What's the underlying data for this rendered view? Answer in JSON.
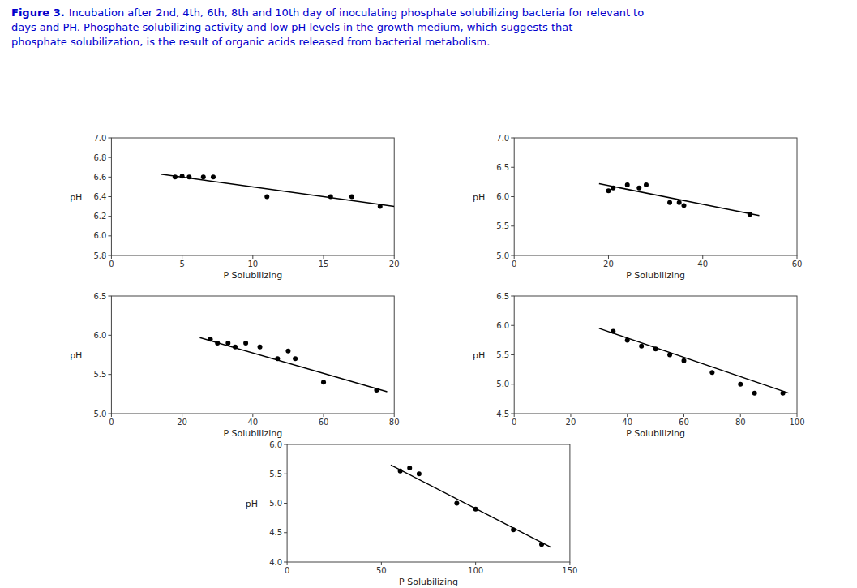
{
  "title": "Figure 3.",
  "subtitle": [
    "Incubation after 2nd, 4th, 6th, 8th and 10th day of inoculating phosphate solubilizing bacteria for relevant to",
    "days and PH. Phosphate solubilizing activity and low pH levels in the growth medium, which suggests that",
    "phosphate solubilization, is the result of organic acids released from bacterial metabolism."
  ],
  "color": "#0000cc",
  "chart_data": [
    {
      "type": "scatter",
      "x_label": "P Solubilizing",
      "y_label": "pH",
      "grid": false,
      "xlim": [
        0,
        20
      ],
      "ylim": [
        5.8,
        7.0
      ],
      "xticks": [
        0,
        5,
        10,
        15,
        20
      ],
      "yticks": [
        5.8,
        {
          "value": 6.0,
          "label": "6.0"
        },
        6.2,
        6.4,
        6.6,
        6.8,
        {
          "value": 7.0,
          "label": "7.0"
        }
      ],
      "series": [
        {
          "type": "scatter",
          "color": "#000000",
          "x": [
            4.5,
            5.0,
            5.5,
            6.5,
            7.2,
            11.0,
            15.5,
            17.0,
            19.0
          ],
          "values": [
            6.6,
            6.61,
            6.6,
            6.6,
            6.6,
            6.4,
            6.4,
            6.4,
            6.3
          ]
        },
        {
          "type": "line",
          "color": "#000000",
          "x": [
            3.5,
            20
          ],
          "values": [
            6.63,
            6.3
          ]
        }
      ]
    },
    {
      "type": "scatter",
      "x_label": "P Solubilizing",
      "y_label": "pH",
      "grid": false,
      "xlim": [
        0,
        60
      ],
      "ylim": [
        5.0,
        7.0
      ],
      "xticks": [
        0,
        20,
        40,
        60
      ],
      "yticks": [
        {
          "value": 5.0,
          "label": "5.0"
        },
        5.5,
        {
          "value": 6.0,
          "label": "6.0"
        },
        6.5,
        {
          "value": 7.0,
          "label": "7.0"
        }
      ],
      "series": [
        {
          "type": "scatter",
          "color": "#000000",
          "x": [
            20.0,
            21.0,
            24.0,
            26.5,
            28.0,
            33.0,
            35.0,
            36.0,
            50.0
          ],
          "values": [
            6.1,
            6.15,
            6.2,
            6.15,
            6.2,
            5.9,
            5.9,
            5.85,
            5.7
          ]
        },
        {
          "type": "line",
          "color": "#000000",
          "x": [
            18,
            52
          ],
          "values": [
            6.22,
            5.68
          ]
        }
      ]
    },
    {
      "type": "scatter",
      "x_label": "P Solubilizing",
      "y_label": "pH",
      "grid": false,
      "xlim": [
        0,
        80
      ],
      "ylim": [
        5.0,
        6.5
      ],
      "xticks": [
        0,
        20,
        40,
        60,
        80
      ],
      "yticks": [
        {
          "value": 5.0,
          "label": "5.0"
        },
        5.5,
        {
          "value": 6.0,
          "label": "6.0"
        },
        6.5
      ],
      "series": [
        {
          "type": "scatter",
          "color": "#000000",
          "x": [
            28.0,
            30.0,
            33.0,
            35.0,
            38.0,
            42.0,
            47.0,
            50.0,
            52.0,
            60.0,
            75.0
          ],
          "values": [
            5.95,
            5.9,
            5.9,
            5.85,
            5.9,
            5.85,
            5.7,
            5.8,
            5.7,
            5.4,
            5.3
          ]
        },
        {
          "type": "line",
          "color": "#000000",
          "x": [
            25,
            78
          ],
          "values": [
            5.97,
            5.28
          ]
        }
      ]
    },
    {
      "type": "scatter",
      "x_label": "P Solubilizing",
      "y_label": "pH",
      "grid": false,
      "xlim": [
        0,
        100
      ],
      "ylim": [
        4.5,
        6.5
      ],
      "xticks": [
        0,
        20,
        40,
        60,
        80,
        100
      ],
      "yticks": [
        4.5,
        {
          "value": 5.0,
          "label": "5.0"
        },
        5.5,
        {
          "value": 6.0,
          "label": "6.0"
        },
        6.5
      ],
      "series": [
        {
          "type": "scatter",
          "color": "#000000",
          "x": [
            35.0,
            40.0,
            45.0,
            50.0,
            55.0,
            60.0,
            70.0,
            80.0,
            85.0,
            95.0
          ],
          "values": [
            5.9,
            5.75,
            5.65,
            5.6,
            5.5,
            5.4,
            5.2,
            5.0,
            4.85,
            4.85
          ]
        },
        {
          "type": "line",
          "color": "#000000",
          "x": [
            30,
            97
          ],
          "values": [
            5.95,
            4.85
          ]
        }
      ]
    },
    {
      "type": "scatter",
      "x_label": "P Solubilizing",
      "y_label": "pH",
      "grid": false,
      "xlim": [
        0,
        150
      ],
      "ylim": [
        4.0,
        6.0
      ],
      "xticks": [
        0,
        50,
        100,
        150
      ],
      "yticks": [
        {
          "value": 4.0,
          "label": "4.0"
        },
        4.5,
        {
          "value": 5.0,
          "label": "5.0"
        },
        5.5,
        {
          "value": 6.0,
          "label": "6.0"
        }
      ],
      "series": [
        {
          "type": "scatter",
          "color": "#000000",
          "x": [
            60.0,
            65.0,
            70.0,
            90.0,
            100.0,
            120.0,
            135.0
          ],
          "values": [
            5.55,
            5.6,
            5.5,
            5.0,
            4.9,
            4.55,
            4.3
          ]
        },
        {
          "type": "line",
          "color": "#000000",
          "x": [
            55,
            140
          ],
          "values": [
            5.65,
            4.25
          ]
        }
      ]
    }
  ]
}
